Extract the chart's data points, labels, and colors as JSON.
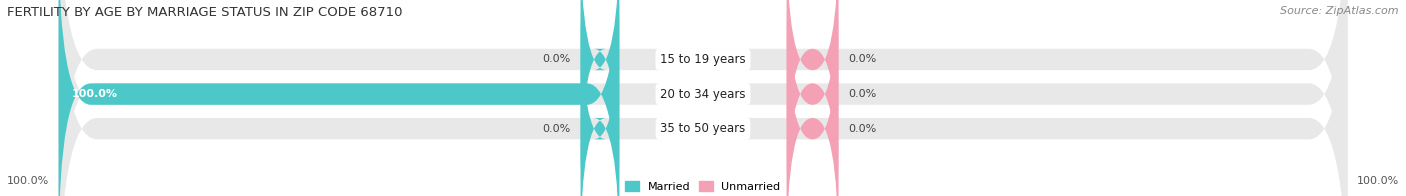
{
  "title": "FERTILITY BY AGE BY MARRIAGE STATUS IN ZIP CODE 68710",
  "source": "Source: ZipAtlas.com",
  "rows": [
    {
      "label": "15 to 19 years",
      "married": 0.0,
      "unmarried": 0.0
    },
    {
      "label": "20 to 34 years",
      "married": 100.0,
      "unmarried": 0.0
    },
    {
      "label": "35 to 50 years",
      "married": 0.0,
      "unmarried": 0.0
    }
  ],
  "married_color": "#4dc8c8",
  "unmarried_color": "#f4a0b5",
  "bar_bg_color": "#e8e8e8",
  "axis_left_label": "100.0%",
  "axis_right_label": "100.0%",
  "figsize": [
    14.06,
    1.96
  ],
  "dpi": 100,
  "title_fontsize": 9.5,
  "source_fontsize": 8,
  "tick_fontsize": 8,
  "label_fontsize": 8.5,
  "bar_label_fontsize": 8
}
